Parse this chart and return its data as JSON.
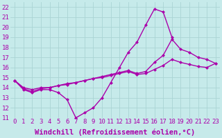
{
  "xlabel": "Windchill (Refroidissement éolien,°C)",
  "xlim": [
    -0.5,
    23.5
  ],
  "ylim": [
    11,
    22.5
  ],
  "xticks": [
    0,
    1,
    2,
    3,
    4,
    5,
    6,
    7,
    8,
    9,
    10,
    11,
    12,
    13,
    14,
    15,
    16,
    17,
    18,
    19,
    20,
    21,
    22,
    23
  ],
  "yticks": [
    11,
    12,
    13,
    14,
    15,
    16,
    17,
    18,
    19,
    20,
    21,
    22
  ],
  "bg_color": "#c6eaea",
  "grid_color": "#aad4d4",
  "line_color": "#aa00aa",
  "line1_x": [
    0,
    1,
    2,
    3,
    4,
    5,
    6,
    7,
    8,
    9,
    10,
    11,
    12,
    13,
    14,
    15,
    16,
    17,
    18
  ],
  "line1_y": [
    14.7,
    13.8,
    13.5,
    13.8,
    13.8,
    13.5,
    12.8,
    11.0,
    11.5,
    12.0,
    13.0,
    14.5,
    16.0,
    17.5,
    18.5,
    20.2,
    21.8,
    21.5,
    19.0
  ],
  "line2_x": [
    0,
    1,
    2,
    3,
    4,
    5,
    6,
    7,
    8,
    9,
    10,
    11,
    12,
    13,
    14,
    15,
    16,
    17,
    18,
    19,
    20,
    21,
    22,
    23
  ],
  "line2_y": [
    14.7,
    14.0,
    13.8,
    14.0,
    14.0,
    14.2,
    14.3,
    14.5,
    14.7,
    14.9,
    15.1,
    15.3,
    15.5,
    15.7,
    15.4,
    15.6,
    16.5,
    17.2,
    18.8,
    17.8,
    17.5,
    17.0,
    16.8,
    16.4
  ],
  "line3_x": [
    0,
    1,
    2,
    3,
    4,
    5,
    6,
    7,
    8,
    9,
    10,
    11,
    12,
    13,
    14,
    15,
    16,
    17,
    18,
    19,
    20,
    21,
    22,
    23
  ],
  "line3_y": [
    14.7,
    13.9,
    13.6,
    13.9,
    14.0,
    14.2,
    14.4,
    14.5,
    14.7,
    14.9,
    15.0,
    15.2,
    15.4,
    15.6,
    15.3,
    15.4,
    15.8,
    16.2,
    16.8,
    16.5,
    16.3,
    16.1,
    16.0,
    16.4
  ],
  "marker": "D",
  "markersize": 2.5,
  "linewidth": 1.0,
  "font_family": "monospace",
  "tick_fontsize": 6.5,
  "xlabel_fontsize": 7.5
}
